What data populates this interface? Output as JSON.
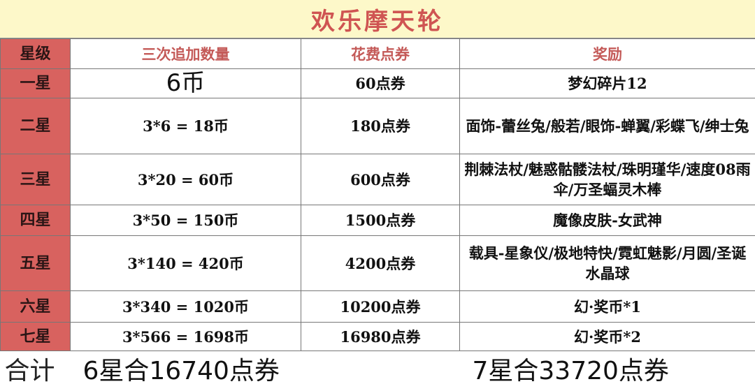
{
  "title": "欢乐摩天轮",
  "headers": [
    "星级",
    "三次追加数量",
    "花费点券",
    "奖励"
  ],
  "rows": [
    {
      "star": "一星",
      "count": "6币",
      "cost": "60点券",
      "reward": "梦幻碎片12"
    },
    {
      "star": "二星",
      "count": "3*6 = 18币",
      "cost": "180点券",
      "reward": "面饰-蕾丝兔/般若/眼饰-蝉翼/彩蝶飞/绅士兔"
    },
    {
      "star": "三星",
      "count": "3*20 = 60币",
      "cost": "600点券",
      "reward": "荆棘法杖/魅惑骷髅法杖/珠明瑾华/速度08雨伞/万圣蝠灵木棒"
    },
    {
      "star": "四星",
      "count": "3*50 = 150币",
      "cost": "1500点券",
      "reward": "魔像皮肤-女武神"
    },
    {
      "star": "五星",
      "count": "3*140 = 420币",
      "cost": "4200点券",
      "reward": "载具-星象仪/极地特快/霓虹魅影/月圆/圣诞水晶球"
    },
    {
      "star": "六星",
      "count": "3*340 = 1020币",
      "cost": "10200点券",
      "reward": "幻·奖币*1"
    },
    {
      "star": "七星",
      "count": "3*566 = 1698币",
      "cost": "16980点券",
      "reward": "幻·奖币*2"
    }
  ],
  "total": {
    "label": "合计",
    "six_star": "6星合16740点券",
    "seven_star": "7星合33720点券"
  },
  "colors": {
    "title_bg": "#fdf8c9",
    "title_text": "#cf5452",
    "star_col": "#d8625f"
  }
}
